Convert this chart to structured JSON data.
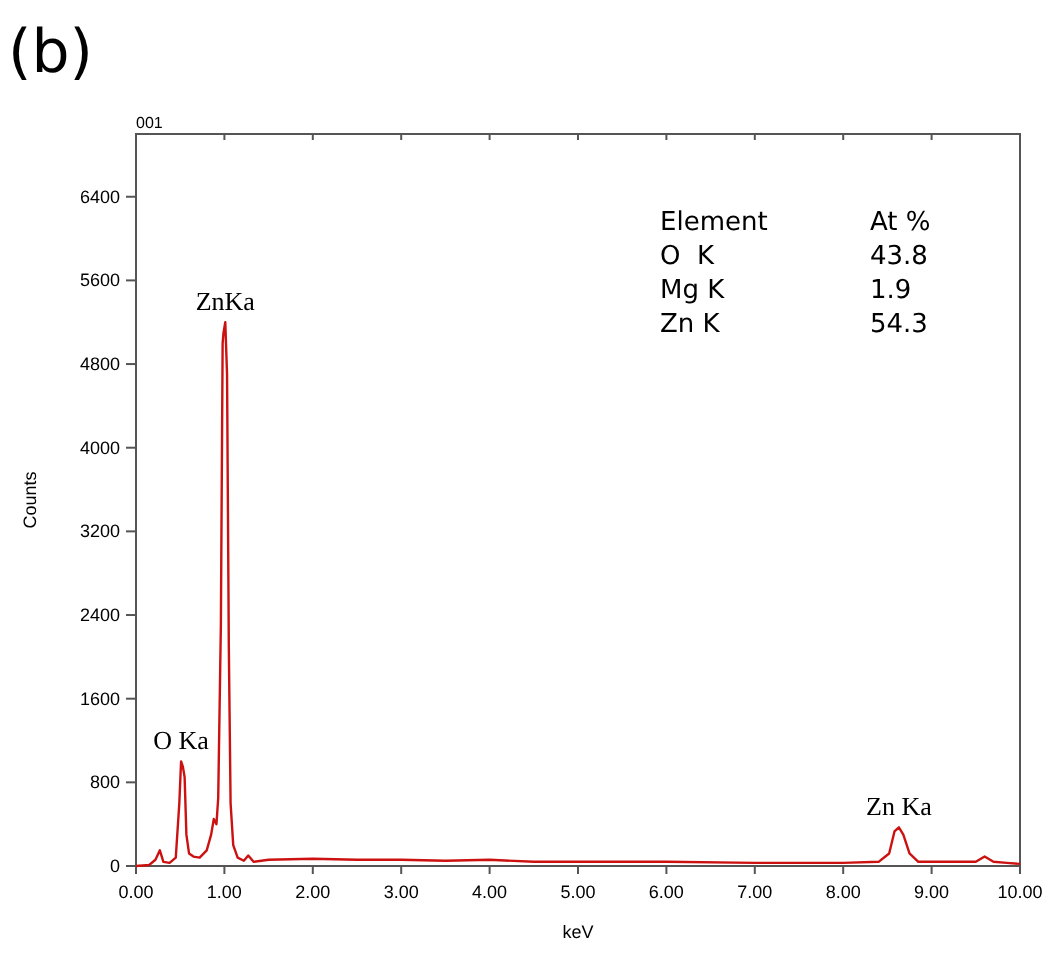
{
  "chart_data": {
    "type": "line",
    "title": "(b)",
    "xlabel": "keV",
    "ylabel": "Counts",
    "xlim": [
      0,
      10
    ],
    "ylim": [
      0,
      7000
    ],
    "xticks": [
      {
        "value": 0,
        "label": "0.00"
      },
      {
        "value": 1,
        "label": "1.00"
      },
      {
        "value": 2,
        "label": "2.00"
      },
      {
        "value": 3,
        "label": "3.00"
      },
      {
        "value": 4,
        "label": "4.00"
      },
      {
        "value": 5,
        "label": "5.00"
      },
      {
        "value": 6,
        "label": "6.00"
      },
      {
        "value": 7,
        "label": "7.00"
      },
      {
        "value": 8,
        "label": "8.00"
      },
      {
        "value": 9,
        "label": "9.00"
      },
      {
        "value": 10,
        "label": "10.00"
      }
    ],
    "yticks": [
      0,
      800,
      1600,
      2400,
      3200,
      4000,
      4800,
      5600,
      6400
    ],
    "grid": false,
    "marker": "none",
    "line_style": "solid",
    "series": [
      {
        "color": "#cc1111",
        "x": [
          0,
          0.15,
          0.22,
          0.27,
          0.31,
          0.38,
          0.45,
          0.49,
          0.51,
          0.53,
          0.55,
          0.57,
          0.6,
          0.65,
          0.72,
          0.8,
          0.85,
          0.88,
          0.91,
          0.93,
          0.96,
          0.98,
          0.99,
          1.01,
          1.03,
          1.05,
          1.07,
          1.1,
          1.15,
          1.22,
          1.27,
          1.33,
          1.5,
          2,
          2.5,
          3,
          3.5,
          4,
          4.5,
          5,
          6,
          7,
          8,
          8.4,
          8.52,
          8.58,
          8.63,
          8.68,
          8.75,
          8.85,
          9.2,
          9.5,
          9.6,
          9.7,
          9.85,
          10
        ],
        "values": [
          0,
          10,
          60,
          150,
          40,
          30,
          80,
          600,
          1000,
          950,
          850,
          300,
          120,
          90,
          80,
          150,
          300,
          450,
          400,
          650,
          2300,
          5000,
          5100,
          5200,
          4700,
          2100,
          600,
          200,
          80,
          50,
          100,
          40,
          60,
          70,
          60,
          60,
          50,
          60,
          40,
          40,
          40,
          30,
          30,
          40,
          120,
          330,
          370,
          300,
          120,
          40,
          40,
          40,
          90,
          40,
          30,
          20
        ]
      }
    ],
    "annotations": [
      "001",
      {
        "text": "ZnKa",
        "x": 1.01,
        "y": 5200
      },
      {
        "text": "O Ka",
        "x": 0.51,
        "y": 1000
      },
      {
        "text": "Zn Ka",
        "x": 8.63,
        "y": 370
      },
      "Element",
      "At %",
      "O  K",
      "43.8",
      "Mg K",
      "1.9",
      "Zn K",
      "54.3"
    ]
  }
}
